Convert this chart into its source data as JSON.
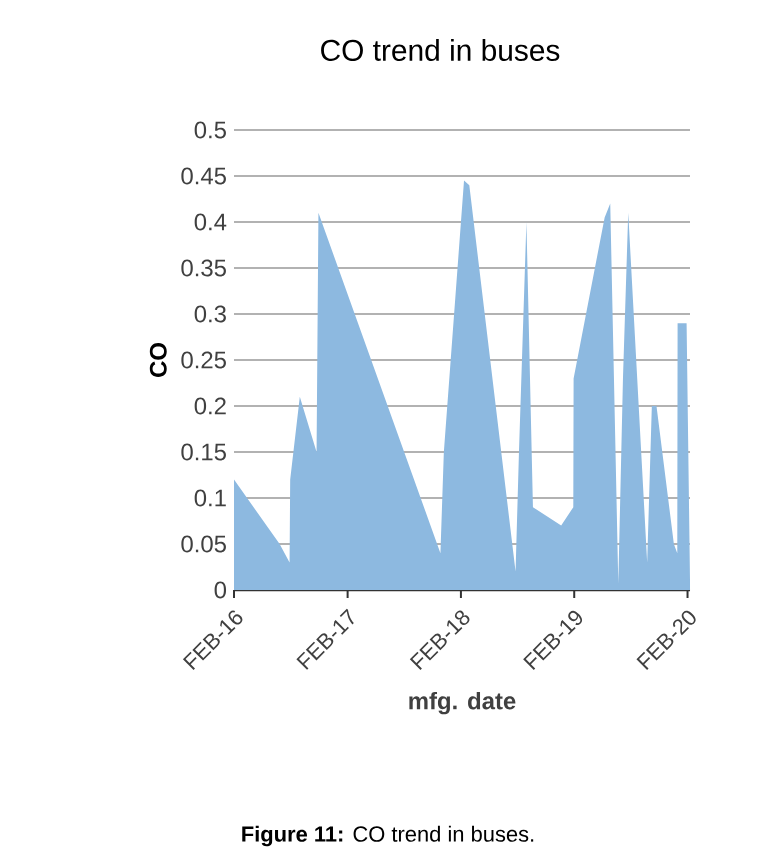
{
  "chart_data": {
    "type": "area",
    "title": "CO trend in buses",
    "xlabel": "mfg. date",
    "ylabel": "CO",
    "annotations": [
      "**Figure 11:** CO trend in buses."
    ],
    "x": [
      "2016-02-01",
      "2016-06-27",
      "2016-07-29",
      "2016-07-31",
      "2016-08-31",
      "2016-10-24",
      "2016-10-30",
      "2017-11-27",
      "2017-12-08",
      "2018-02-11",
      "2018-02-28",
      "2018-07-27",
      "2018-08-07",
      "2018-08-31",
      "2018-09-21",
      "2018-12-21",
      "2019-01-29",
      "2019-01-30",
      "2019-05-10",
      "2019-05-28",
      "2019-06-23",
      "2019-07-08",
      "2019-07-25",
      "2019-09-24",
      "2019-10-09",
      "2019-10-24",
      "2019-12-19",
      "2019-12-30",
      "2019-12-31",
      "2020-01-29",
      "2020-02-09"
    ],
    "values": [
      0.12,
      0.05,
      0.03,
      0.12,
      0.21,
      0.15,
      0.41,
      0.04,
      0.15,
      0.445,
      0.44,
      0.02,
      0.15,
      0.4,
      0.09,
      0.07,
      0.09,
      0.23,
      0.405,
      0.42,
      0.007,
      0.23,
      0.41,
      0.03,
      0.2,
      0.2,
      0.05,
      0.04,
      0.29,
      0.29,
      0.01
    ],
    "color": "#8db9e0",
    "xlim": [
      "2016-02-01",
      "2020-02-09"
    ],
    "xticks": [
      {
        "value": "2016-02-01",
        "label": "FEB-16"
      },
      {
        "value": "2017-02-01",
        "label": "FEB-17"
      },
      {
        "value": "2018-02-01",
        "label": "FEB-18"
      },
      {
        "value": "2019-02-01",
        "label": "FEB-19"
      },
      {
        "value": "2020-02-01",
        "label": "FEB-20"
      }
    ],
    "ylim": [
      0,
      0.5
    ],
    "yticks": [
      0,
      0.05,
      0.1,
      0.15,
      0.2,
      0.25,
      0.3,
      0.35,
      0.4,
      0.45,
      0.5
    ],
    "grid": "y"
  }
}
